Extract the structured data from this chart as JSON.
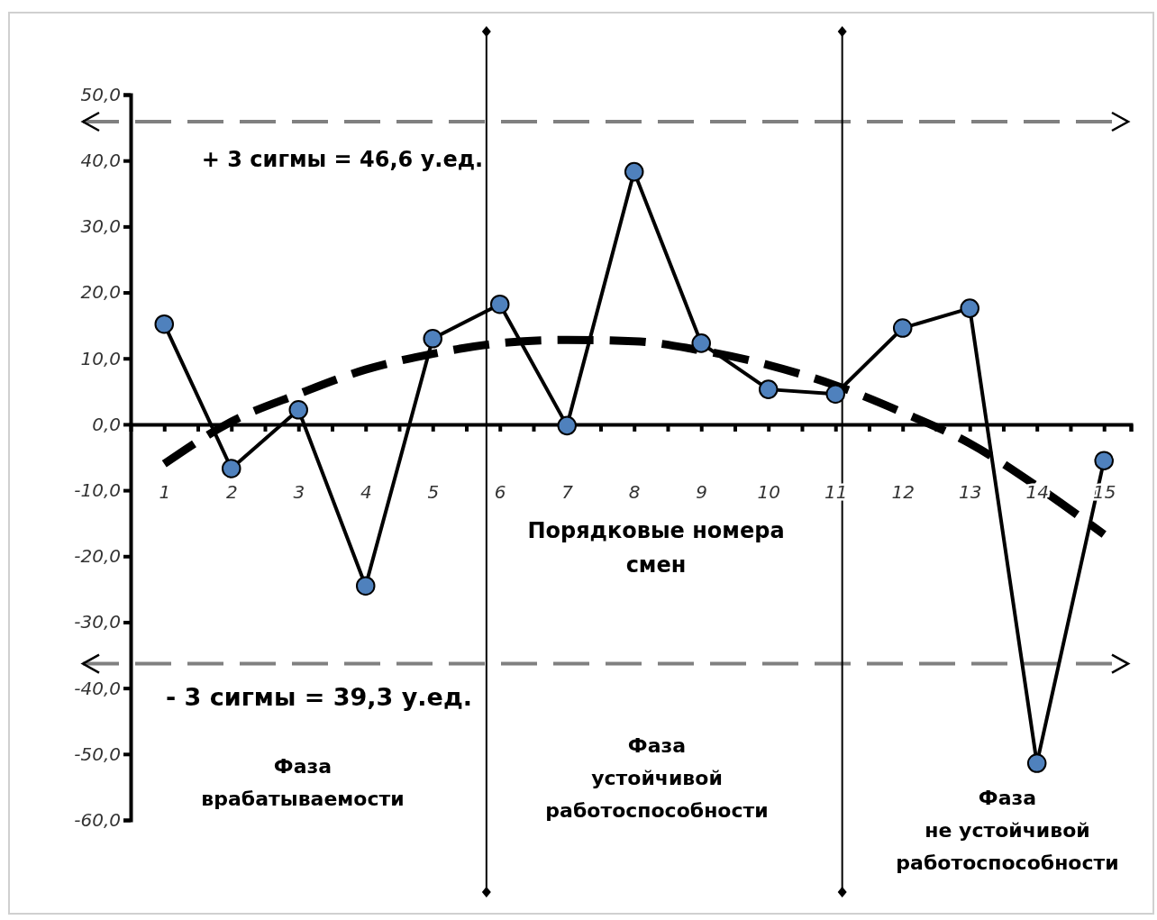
{
  "chart_data": {
    "type": "line",
    "xlabel": "Порядковые номера смен",
    "x": [
      1,
      2,
      3,
      4,
      5,
      6,
      7,
      8,
      9,
      10,
      11,
      12,
      13,
      14,
      15
    ],
    "series": [
      {
        "color": "#4f81bd",
        "marker": "circle",
        "line_style": "solid",
        "values": [
          15.2,
          -6.7,
          2.2,
          -24.5,
          13.0,
          18.2,
          -0.2,
          38.3,
          12.3,
          5.3,
          4.6,
          14.6,
          17.6,
          -51.4,
          -5.5
        ]
      },
      {
        "color": "#000000",
        "marker": "none",
        "line_style": "dashed",
        "values": [
          -6.0,
          0.4,
          4.6,
          8.3,
          10.7,
          12.3,
          12.8,
          12.6,
          11.2,
          9.0,
          5.9,
          1.8,
          -2.9,
          -9.4,
          -16.7
        ]
      }
    ],
    "xlim": [
      0.5,
      15.4
    ],
    "xticks": [
      1,
      2,
      3,
      4,
      5,
      6,
      7,
      8,
      9,
      10,
      11,
      12,
      13,
      14,
      15,
      {
        "value": 1.5,
        "label": null
      },
      {
        "value": 2.5,
        "label": null
      },
      {
        "value": 3.5,
        "label": null
      },
      {
        "value": 4.5,
        "label": null
      },
      {
        "value": 5.5,
        "label": null
      },
      {
        "value": 6.5,
        "label": null
      },
      {
        "value": 7.5,
        "label": null
      },
      {
        "value": 8.5,
        "label": null
      },
      {
        "value": 9.5,
        "label": null
      },
      {
        "value": 10.5,
        "label": null
      },
      {
        "value": 11.5,
        "label": null
      },
      {
        "value": 12.5,
        "label": null
      },
      {
        "value": 13.5,
        "label": null
      },
      {
        "value": 14.5,
        "label": null
      },
      {
        "value": 15.4,
        "label": null
      }
    ],
    "ylim": [
      -60,
      50
    ],
    "yticks": [
      {
        "value": -60,
        "label": "-60,0"
      },
      {
        "value": -50,
        "label": "-50,0"
      },
      {
        "value": -40,
        "label": "-40,0"
      },
      {
        "value": -30,
        "label": "-30,0"
      },
      {
        "value": -20,
        "label": "-20,0"
      },
      {
        "value": -10,
        "label": "-10,0"
      },
      {
        "value": 0,
        "label": "0,0"
      },
      {
        "value": 10,
        "label": "10,0"
      },
      {
        "value": 20,
        "label": "20,0"
      },
      {
        "value": 30,
        "label": "30,0"
      },
      {
        "value": 40,
        "label": "40,0"
      },
      {
        "value": 50,
        "label": "50,0"
      }
    ],
    "grid": false,
    "ref_lines": [
      {
        "axis": "y",
        "value": 45.9,
        "color": "#808080",
        "line_style": "dashed"
      },
      {
        "axis": "y",
        "value": -36.3,
        "color": "#808080",
        "line_style": "dashed"
      },
      {
        "axis": "x",
        "value": 5.8,
        "color": "#000000",
        "line_style": "solid"
      },
      {
        "axis": "x",
        "value": 11.1,
        "color": "#000000",
        "line_style": "solid"
      }
    ],
    "annotations": [
      "+ 3 сигмы = 46,6 у.ед.",
      "- 3 сигмы = 39,3 у.ед.",
      "Фаза\nврабатываемости",
      "Фаза\nустойчивой\nработоспособности",
      "Фаза\nне устойчивой\nработоспособности"
    ]
  }
}
